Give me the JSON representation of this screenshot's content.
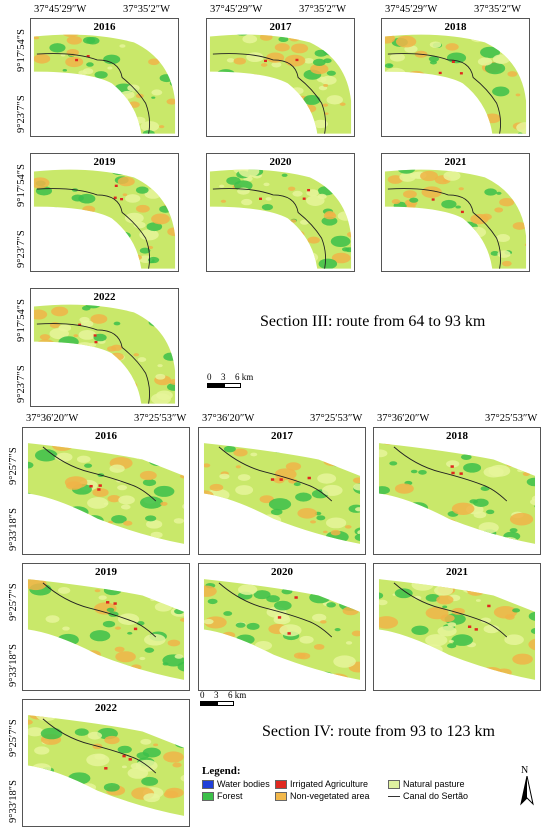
{
  "section3": {
    "label": "Section III: route from 64 to 93 km",
    "lon_left": "37°45′29″W",
    "lon_right": "37°35′2″W",
    "lat_top": "9°17′54″S",
    "lat_bottom": "9°23′7″S",
    "years": [
      "2016",
      "2017",
      "2018",
      "2019",
      "2020",
      "2021",
      "2022"
    ]
  },
  "section4": {
    "label": "Section IV: route from 93 to 123 km",
    "lon_left": "37°36′20″W",
    "lon_right": "37°25′53″W",
    "lat_top": "9°25′7″S",
    "lat_bottom": "9°33′18″S",
    "years": [
      "2016",
      "2017",
      "2018",
      "2019",
      "2020",
      "2021",
      "2022"
    ]
  },
  "scale": {
    "zero": "0",
    "mid": "3",
    "end": "6 km"
  },
  "legend": {
    "title": "Legend:",
    "items": [
      {
        "label": "Water bodies",
        "color": "#1f3fd9"
      },
      {
        "label": "Irrigated Agriculture",
        "color": "#e0281f"
      },
      {
        "label": "Natural pasture",
        "color": "#dff0a0"
      },
      {
        "label": "Forest",
        "color": "#3cc04a"
      },
      {
        "label": "Non-vegetated area",
        "color": "#f2b84b"
      },
      {
        "label": "Canal do Sertão",
        "color": "#333333"
      }
    ]
  },
  "north": {
    "label": "N"
  },
  "colors": {
    "forest": "#3cc04a",
    "pasture": "#c9e86a",
    "bare": "#f0b448",
    "canal": "#222222",
    "agri": "#e0281f"
  }
}
